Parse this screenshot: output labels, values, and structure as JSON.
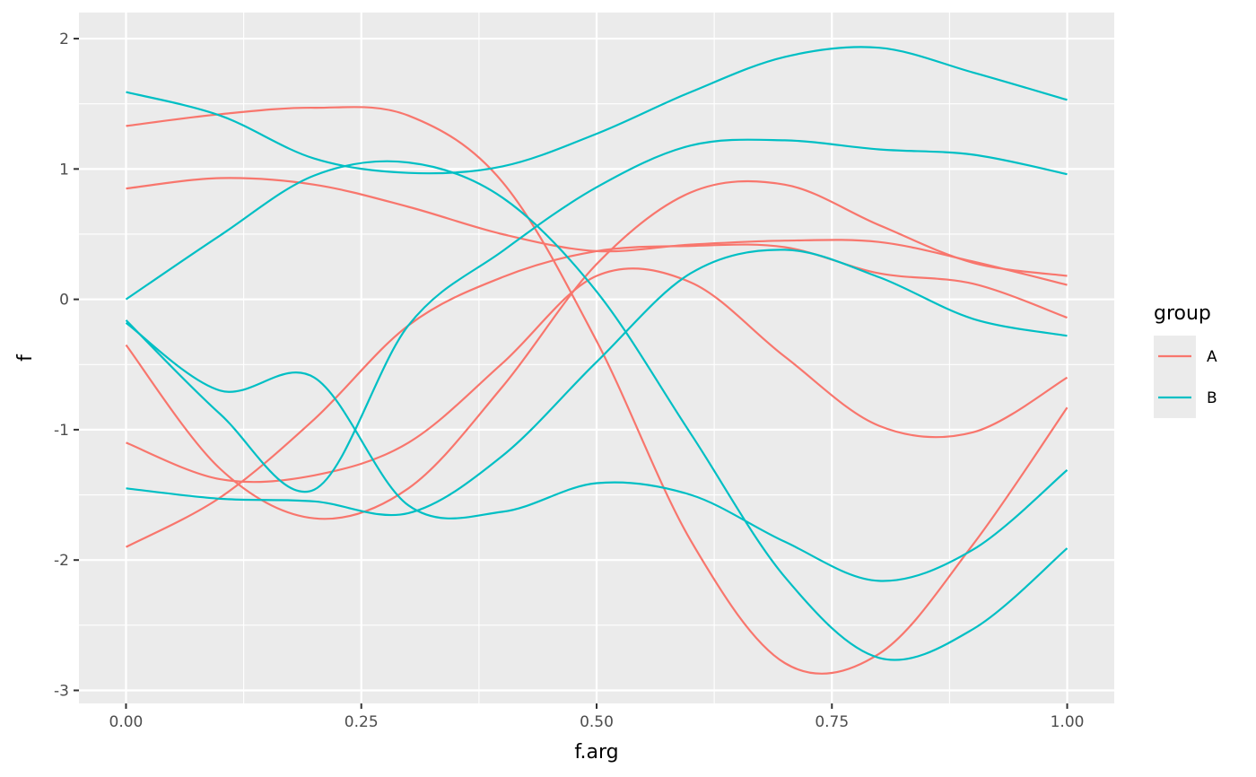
{
  "chart_data": {
    "type": "line",
    "xlabel": "f.arg",
    "ylabel": "f",
    "xlim": [
      -0.05,
      1.05
    ],
    "ylim": [
      -3.1,
      2.2
    ],
    "x_ticks": [
      0,
      0.25,
      0.5,
      0.75,
      1
    ],
    "x_tick_labels": [
      "0.00",
      "0.25",
      "0.50",
      "0.75",
      "1.00"
    ],
    "y_ticks": [
      -3,
      -2,
      -1,
      0,
      1,
      2
    ],
    "y_tick_labels": [
      "-3",
      "-2",
      "-1",
      "0",
      "1",
      "2"
    ],
    "grid": true,
    "legend": {
      "title": "group",
      "position": "right",
      "entries": [
        {
          "label": "A",
          "color": "#F8766D"
        },
        {
          "label": "B",
          "color": "#00BFC4"
        }
      ]
    },
    "x": [
      0,
      0.1,
      0.2,
      0.3,
      0.4,
      0.5,
      0.6,
      0.7,
      0.8,
      0.9,
      1.0
    ],
    "series": [
      {
        "group": "A",
        "color": "#F8766D",
        "y": [
          1.33,
          1.42,
          1.47,
          1.41,
          0.9,
          -0.32,
          -1.85,
          -2.79,
          -2.72,
          -1.88,
          -0.83
        ]
      },
      {
        "group": "A",
        "color": "#F8766D",
        "y": [
          0.85,
          0.93,
          0.88,
          0.71,
          0.5,
          0.37,
          0.42,
          0.45,
          0.44,
          0.29,
          0.11
        ]
      },
      {
        "group": "A",
        "color": "#F8766D",
        "y": [
          -0.35,
          -1.3,
          -1.68,
          -1.45,
          -0.67,
          0.27,
          0.82,
          0.88,
          0.57,
          0.28,
          0.18
        ]
      },
      {
        "group": "A",
        "color": "#F8766D",
        "y": [
          -1.1,
          -1.38,
          -1.35,
          -1.1,
          -0.49,
          0.18,
          0.13,
          -0.44,
          -0.97,
          -1.02,
          -0.6
        ]
      },
      {
        "group": "A",
        "color": "#F8766D",
        "y": [
          -1.9,
          -1.52,
          -0.92,
          -0.2,
          0.17,
          0.37,
          0.41,
          0.4,
          0.2,
          0.12,
          -0.14
        ]
      },
      {
        "group": "B",
        "color": "#00BFC4",
        "y": [
          1.59,
          1.41,
          1.08,
          0.97,
          1.02,
          1.27,
          1.59,
          1.86,
          1.93,
          1.74,
          1.53
        ]
      },
      {
        "group": "B",
        "color": "#00BFC4",
        "y": [
          0.0,
          0.49,
          0.95,
          1.05,
          0.78,
          0.06,
          -1.03,
          -2.13,
          -2.75,
          -2.53,
          -1.91
        ]
      },
      {
        "group": "B",
        "color": "#00BFC4",
        "y": [
          -0.16,
          -0.88,
          -1.46,
          -0.2,
          0.37,
          0.86,
          1.18,
          1.22,
          1.15,
          1.11,
          0.96
        ]
      },
      {
        "group": "B",
        "color": "#00BFC4",
        "y": [
          -0.18,
          -0.7,
          -0.6,
          -1.58,
          -1.63,
          -1.41,
          -1.5,
          -1.86,
          -2.16,
          -1.92,
          -1.31
        ]
      },
      {
        "group": "B",
        "color": "#00BFC4",
        "y": [
          -1.45,
          -1.53,
          -1.55,
          -1.64,
          -1.2,
          -0.48,
          0.2,
          0.38,
          0.17,
          -0.15,
          -0.28
        ]
      }
    ]
  }
}
